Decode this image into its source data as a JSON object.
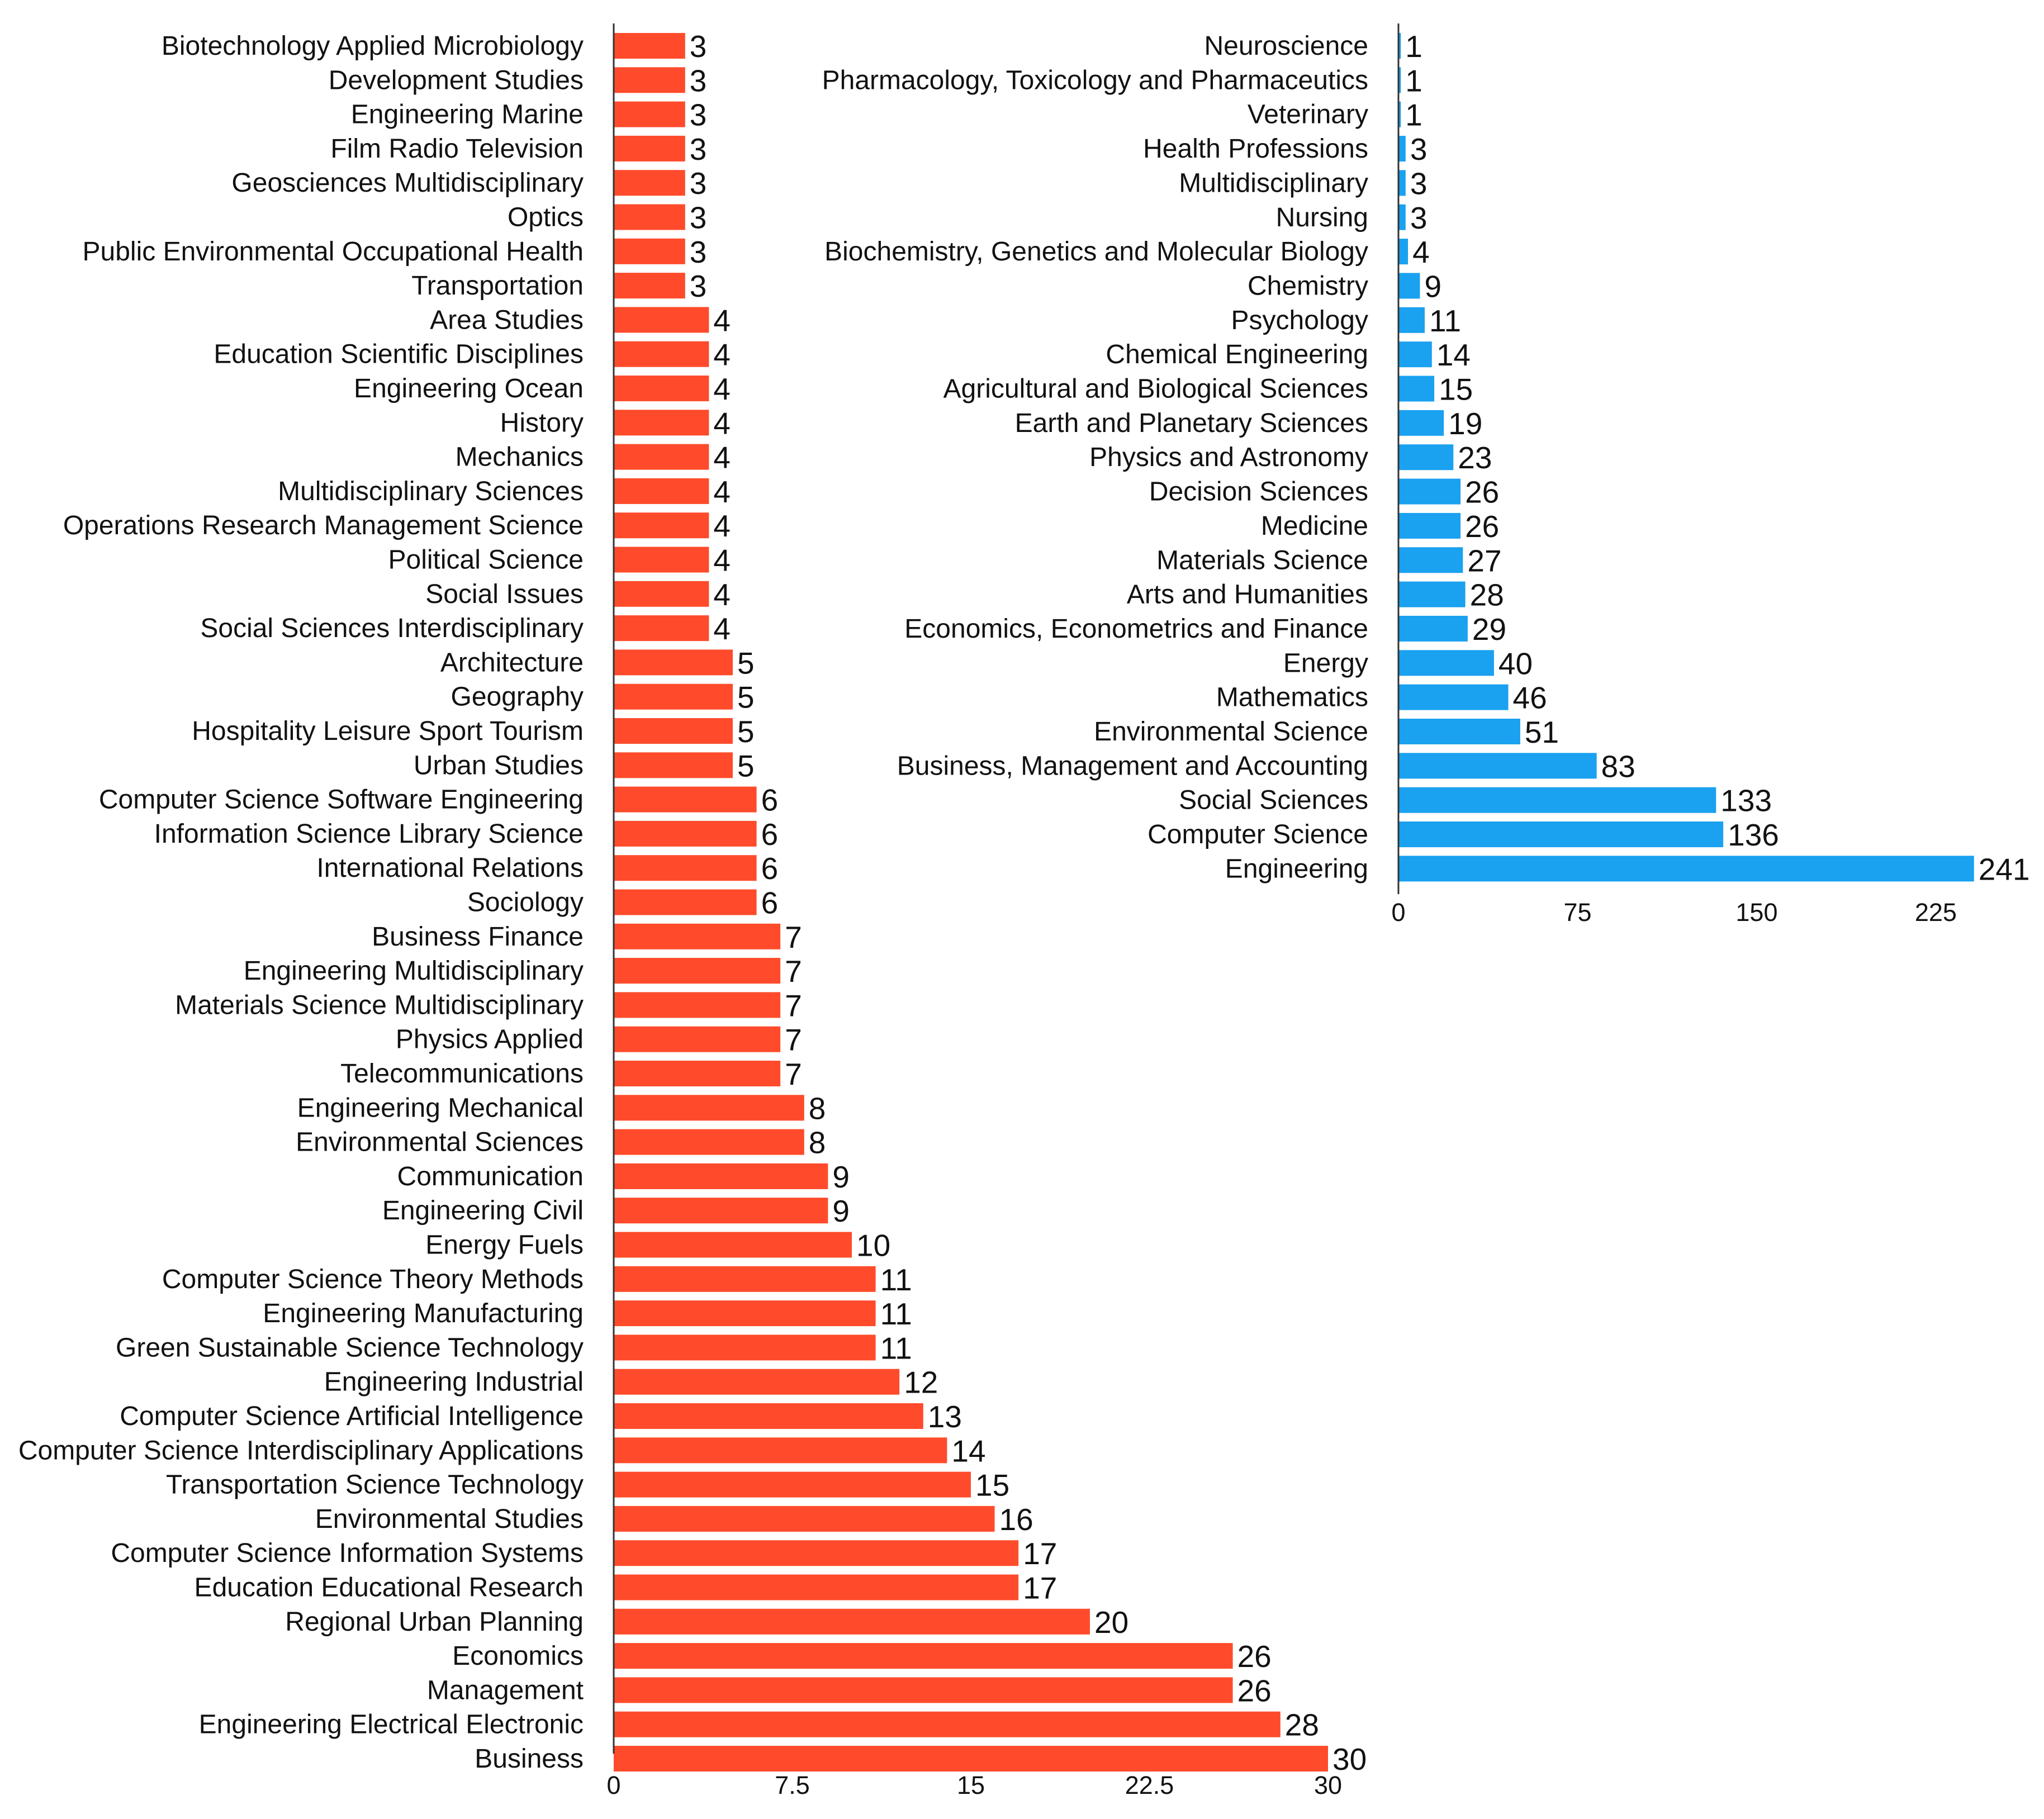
{
  "chart_data": [
    {
      "type": "bar",
      "orientation": "horizontal",
      "color": "#FF4B2B",
      "xlim": [
        0,
        30
      ],
      "ticks": [
        "0",
        "7.5",
        "15",
        "22.5",
        "30"
      ],
      "categories": [
        "Biotechnology Applied Microbiology",
        "Development Studies",
        "Engineering Marine",
        "Film Radio Television",
        "Geosciences Multidisciplinary",
        "Optics",
        "Public Environmental Occupational Health",
        "Transportation",
        "Area Studies",
        "Education Scientific Disciplines",
        "Engineering Ocean",
        "History",
        "Mechanics",
        "Multidisciplinary Sciences",
        "Operations Research Management Science",
        "Political Science",
        "Social Issues",
        "Social Sciences Interdisciplinary",
        "Architecture",
        "Geography",
        "Hospitality Leisure Sport Tourism",
        "Urban Studies",
        "Computer Science Software Engineering",
        "Information Science Library Science",
        "International Relations",
        "Sociology",
        "Business Finance",
        "Engineering Multidisciplinary",
        "Materials Science Multidisciplinary",
        "Physics Applied",
        "Telecommunications",
        "Engineering Mechanical",
        "Environmental Sciences",
        "Communication",
        "Engineering Civil",
        "Energy Fuels",
        "Computer Science Theory Methods",
        "Engineering Manufacturing",
        "Green Sustainable Science Technology",
        "Engineering Industrial",
        "Computer Science Artificial Intelligence",
        "Computer Science Interdisciplinary Applications",
        "Transportation Science Technology",
        "Environmental Studies",
        "Computer Science Information Systems",
        "Education Educational Research",
        "Regional Urban Planning",
        "Economics",
        "Management",
        "Engineering Electrical Electronic",
        "Business"
      ],
      "values": [
        3,
        3,
        3,
        3,
        3,
        3,
        3,
        3,
        4,
        4,
        4,
        4,
        4,
        4,
        4,
        4,
        4,
        4,
        5,
        5,
        5,
        5,
        6,
        6,
        6,
        6,
        7,
        7,
        7,
        7,
        7,
        8,
        8,
        9,
        9,
        10,
        11,
        11,
        11,
        12,
        13,
        14,
        15,
        16,
        17,
        17,
        20,
        26,
        26,
        28,
        30
      ]
    },
    {
      "type": "bar",
      "orientation": "horizontal",
      "color": "#1AA1F0",
      "xlim": [
        0,
        241
      ],
      "ticks": [
        "0",
        "75",
        "150",
        "225"
      ],
      "categories": [
        "Neuroscience",
        "Pharmacology, Toxicology and Pharmaceutics",
        "Veterinary",
        "Health Professions",
        "Multidisciplinary",
        "Nursing",
        "Biochemistry, Genetics and Molecular Biology",
        "Chemistry",
        "Psychology",
        "Chemical Engineering",
        "Agricultural and Biological Sciences",
        "Earth and Planetary Sciences",
        "Physics and Astronomy",
        "Decision Sciences",
        "Medicine",
        "Materials Science",
        "Arts and Humanities",
        "Economics, Econometrics and Finance",
        "Energy",
        "Mathematics",
        "Environmental Science",
        "Business, Management and Accounting",
        "Social Sciences",
        "Computer Science",
        "Engineering"
      ],
      "values": [
        1,
        1,
        1,
        3,
        3,
        3,
        4,
        9,
        11,
        14,
        15,
        19,
        23,
        26,
        26,
        27,
        28,
        29,
        40,
        46,
        51,
        83,
        133,
        136,
        241
      ]
    }
  ]
}
